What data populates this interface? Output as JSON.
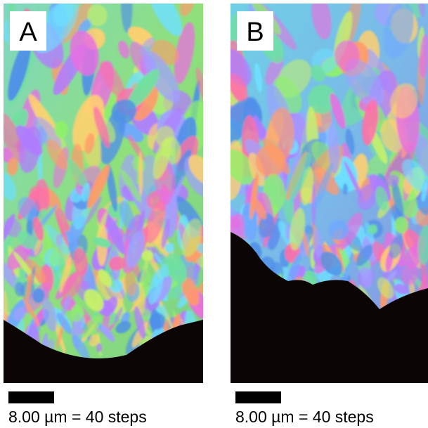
{
  "panels": [
    {
      "label": "A",
      "scale_text": "8.00 µm = 40 steps"
    },
    {
      "label": "B",
      "scale_text": "8.00 µm = 40 steps"
    }
  ]
}
